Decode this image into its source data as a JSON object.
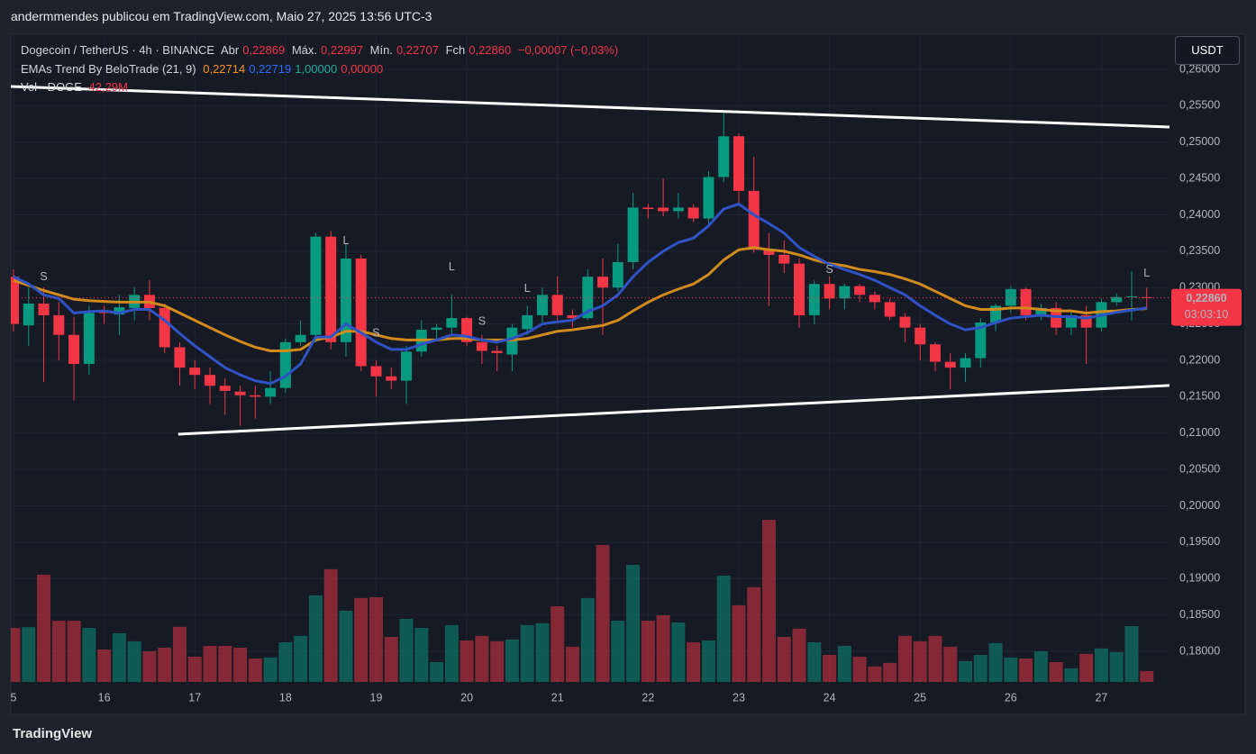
{
  "header": {
    "text": "andermmendes publicou em TradingView.com, Maio 27, 2025 13:56 UTC-3"
  },
  "legend": {
    "symbol": "Dogecoin / TetherUS · 4h · BINANCE",
    "open_key": "Abr",
    "open": "0,22869",
    "high_key": "Máx.",
    "high": "0,22997",
    "low_key": "Mín.",
    "low": "0,22707",
    "close_key": "Fch",
    "close": "0,22860",
    "change": "−0,00007 (−0,03%)",
    "ema_name": "EMAs Trend By BeloTrade (21, 9)",
    "ema_values": [
      "0,22714",
      "0,22719",
      "1,00000",
      "0,00000"
    ],
    "vol_name": "Vol · DOGE",
    "vol_value": "42,29M"
  },
  "currency_button": "USDT",
  "last_price_label": "0,22860",
  "countdown": "03:03:10",
  "footer": "TradingView",
  "chart_data": {
    "type": "candlestick",
    "up_color": "#089981",
    "down_color": "#f23645",
    "ylim": [
      0.17542,
      0.26483
    ],
    "yticks": [
      {
        "value": 0.26,
        "label": "0,26000"
      },
      {
        "value": 0.255,
        "label": "0,25500"
      },
      {
        "value": 0.25,
        "label": "0,25000"
      },
      {
        "value": 0.245,
        "label": "0,24500"
      },
      {
        "value": 0.24,
        "label": "0,24000"
      },
      {
        "value": 0.235,
        "label": "0,23500"
      },
      {
        "value": 0.23,
        "label": "0,23000"
      },
      {
        "value": 0.225,
        "label": "0,22500"
      },
      {
        "value": 0.22,
        "label": "0,22000"
      },
      {
        "value": 0.215,
        "label": "0,21500"
      },
      {
        "value": 0.21,
        "label": "0,21000"
      },
      {
        "value": 0.205,
        "label": "0,20500"
      },
      {
        "value": 0.2,
        "label": "0,20000"
      },
      {
        "value": 0.195,
        "label": "0,19500"
      },
      {
        "value": 0.19,
        "label": "0,19000"
      },
      {
        "value": 0.185,
        "label": "0,18500"
      },
      {
        "value": 0.18,
        "label": "0,18000"
      }
    ],
    "xticks": [
      {
        "value": 0,
        "label": "5"
      },
      {
        "value": 6,
        "label": "16"
      },
      {
        "value": 12,
        "label": "17"
      },
      {
        "value": 18,
        "label": "18"
      },
      {
        "value": 24,
        "label": "19"
      },
      {
        "value": 30,
        "label": "20"
      },
      {
        "value": 36,
        "label": "21"
      },
      {
        "value": 42,
        "label": "22"
      },
      {
        "value": 48,
        "label": "23"
      },
      {
        "value": 54,
        "label": "24"
      },
      {
        "value": 60,
        "label": "25"
      },
      {
        "value": 66,
        "label": "26"
      },
      {
        "value": 72,
        "label": "27"
      }
    ],
    "open": [
      0.2315,
      0.2248,
      0.2278,
      0.2262,
      0.2235,
      0.2195,
      0.2268,
      0.2263,
      0.2272,
      0.229,
      0.2272,
      0.2218,
      0.219,
      0.218,
      0.2165,
      0.2157,
      0.2152,
      0.215,
      0.2162,
      0.2225,
      0.2235,
      0.237,
      0.2225,
      0.234,
      0.2192,
      0.2178,
      0.2172,
      0.2212,
      0.2242,
      0.2245,
      0.2258,
      0.2225,
      0.2213,
      0.2208,
      0.2243,
      0.2262,
      0.229,
      0.2262,
      0.2258,
      0.2315,
      0.23,
      0.2335,
      0.241,
      0.241,
      0.2405,
      0.241,
      0.2395,
      0.2452,
      0.2508,
      0.2433,
      0.2352,
      0.2345,
      0.2333,
      0.2262,
      0.2305,
      0.2285,
      0.2302,
      0.229,
      0.228,
      0.226,
      0.2245,
      0.2222,
      0.2198,
      0.219,
      0.2203,
      0.2252,
      0.2275,
      0.2298,
      0.2262,
      0.2272,
      0.2245,
      0.2262,
      0.2245,
      0.228,
      0.2287,
      0.22869
    ],
    "high": [
      0.2325,
      0.23,
      0.23,
      0.228,
      0.226,
      0.2275,
      0.2275,
      0.229,
      0.23,
      0.231,
      0.2278,
      0.2225,
      0.22,
      0.219,
      0.2175,
      0.2165,
      0.2165,
      0.2185,
      0.223,
      0.2255,
      0.2375,
      0.2378,
      0.236,
      0.2345,
      0.22,
      0.219,
      0.222,
      0.2255,
      0.225,
      0.229,
      0.226,
      0.2235,
      0.222,
      0.225,
      0.2275,
      0.23,
      0.2315,
      0.227,
      0.2325,
      0.234,
      0.236,
      0.243,
      0.2415,
      0.245,
      0.243,
      0.2415,
      0.246,
      0.254,
      0.2512,
      0.248,
      0.2375,
      0.2365,
      0.234,
      0.231,
      0.2315,
      0.2305,
      0.2305,
      0.2295,
      0.2285,
      0.2265,
      0.225,
      0.2225,
      0.221,
      0.221,
      0.2258,
      0.2278,
      0.2302,
      0.23,
      0.2278,
      0.228,
      0.227,
      0.2275,
      0.2285,
      0.2292,
      0.2322,
      0.22997
    ],
    "low": [
      0.224,
      0.222,
      0.217,
      0.22,
      0.2145,
      0.218,
      0.225,
      0.2235,
      0.2255,
      0.2255,
      0.221,
      0.2165,
      0.216,
      0.214,
      0.2125,
      0.211,
      0.212,
      0.214,
      0.2155,
      0.222,
      0.2225,
      0.2215,
      0.2205,
      0.2185,
      0.215,
      0.216,
      0.214,
      0.2205,
      0.223,
      0.2235,
      0.222,
      0.2195,
      0.2185,
      0.2185,
      0.2235,
      0.225,
      0.2255,
      0.2245,
      0.2255,
      0.2235,
      0.2295,
      0.2325,
      0.2395,
      0.2398,
      0.2395,
      0.239,
      0.2385,
      0.2445,
      0.2415,
      0.2348,
      0.2275,
      0.232,
      0.2245,
      0.225,
      0.227,
      0.227,
      0.228,
      0.227,
      0.2255,
      0.2225,
      0.22,
      0.2185,
      0.216,
      0.217,
      0.219,
      0.224,
      0.2265,
      0.2255,
      0.2255,
      0.2235,
      0.2235,
      0.2195,
      0.224,
      0.2275,
      0.2255,
      0.22707
    ],
    "close": [
      0.225,
      0.2278,
      0.2262,
      0.2235,
      0.2195,
      0.2265,
      0.2265,
      0.2273,
      0.229,
      0.2272,
      0.2218,
      0.219,
      0.218,
      0.2165,
      0.2158,
      0.2152,
      0.215,
      0.2162,
      0.2225,
      0.2235,
      0.237,
      0.2225,
      0.234,
      0.2192,
      0.2178,
      0.2172,
      0.2212,
      0.2242,
      0.2245,
      0.2258,
      0.2225,
      0.2213,
      0.221,
      0.2245,
      0.2262,
      0.229,
      0.2262,
      0.2258,
      0.2315,
      0.23,
      0.2335,
      0.241,
      0.2408,
      0.2405,
      0.241,
      0.2395,
      0.2452,
      0.2508,
      0.2433,
      0.2352,
      0.2345,
      0.2333,
      0.2262,
      0.2305,
      0.2285,
      0.2302,
      0.229,
      0.228,
      0.226,
      0.2245,
      0.2222,
      0.2198,
      0.219,
      0.2203,
      0.2252,
      0.2275,
      0.2298,
      0.2262,
      0.2272,
      0.2245,
      0.2262,
      0.2245,
      0.228,
      0.2287,
      0.2288,
      0.2286
    ],
    "volume": [
      210,
      213,
      417,
      238,
      238,
      210,
      126,
      189,
      158,
      119,
      133,
      214,
      98,
      140,
      140,
      133,
      91,
      95,
      154,
      179,
      336,
      438,
      277,
      326,
      329,
      175,
      245,
      210,
      77,
      221,
      161,
      179,
      158,
      165,
      221,
      228,
      294,
      137,
      326,
      532,
      238,
      455,
      238,
      259,
      231,
      154,
      161,
      413,
      298,
      368,
      630,
      175,
      207,
      154,
      105,
      140,
      98,
      60,
      74,
      179,
      158,
      179,
      137,
      81,
      105,
      151,
      95,
      91,
      119,
      77,
      53,
      109,
      130,
      116,
      217,
      42.29
    ],
    "lines": [
      {
        "name": "EMA 21",
        "color": "#d18a1c",
        "values": [
          0.231,
          0.2303,
          0.2296,
          0.229,
          0.2284,
          0.2282,
          0.2281,
          0.228,
          0.228,
          0.228,
          0.2275,
          0.2265,
          0.2255,
          0.2245,
          0.2235,
          0.2226,
          0.2218,
          0.2213,
          0.2213,
          0.2215,
          0.2228,
          0.2232,
          0.224,
          0.224,
          0.2235,
          0.223,
          0.2228,
          0.2228,
          0.2228,
          0.223,
          0.223,
          0.2228,
          0.2228,
          0.2228,
          0.223,
          0.2235,
          0.224,
          0.2242,
          0.2245,
          0.2248,
          0.2255,
          0.2268,
          0.228,
          0.229,
          0.2298,
          0.2305,
          0.2318,
          0.2338,
          0.2352,
          0.2355,
          0.2352,
          0.235,
          0.2345,
          0.2338,
          0.2333,
          0.233,
          0.2325,
          0.2322,
          0.2318,
          0.2312,
          0.2305,
          0.2295,
          0.2285,
          0.2275,
          0.227,
          0.227,
          0.2272,
          0.2272,
          0.227,
          0.2268,
          0.2268,
          0.2265,
          0.2267,
          0.2268,
          0.227,
          0.2271
        ]
      },
      {
        "name": "EMA 9",
        "color": "#2f52c4",
        "values": [
          0.2315,
          0.2305,
          0.229,
          0.2285,
          0.2265,
          0.2267,
          0.2268,
          0.2265,
          0.227,
          0.227,
          0.2255,
          0.2237,
          0.222,
          0.2205,
          0.219,
          0.218,
          0.2172,
          0.2168,
          0.2178,
          0.2195,
          0.2232,
          0.2232,
          0.225,
          0.2238,
          0.2225,
          0.2215,
          0.2215,
          0.2222,
          0.2228,
          0.2235,
          0.2233,
          0.2228,
          0.2225,
          0.223,
          0.2238,
          0.225,
          0.2253,
          0.2255,
          0.2267,
          0.2275,
          0.229,
          0.2315,
          0.2335,
          0.235,
          0.2362,
          0.2368,
          0.2385,
          0.2408,
          0.2415,
          0.24,
          0.2388,
          0.2375,
          0.2355,
          0.2343,
          0.2332,
          0.2325,
          0.2318,
          0.231,
          0.23,
          0.229,
          0.2275,
          0.2262,
          0.225,
          0.2242,
          0.2245,
          0.2252,
          0.2258,
          0.226,
          0.2262,
          0.226,
          0.226,
          0.2258,
          0.2262,
          0.2266,
          0.2269,
          0.2272
        ]
      }
    ],
    "signals": [
      {
        "index": 2,
        "price": 0.2314,
        "label": "S"
      },
      {
        "index": 24,
        "price": 0.2237,
        "label": "S"
      },
      {
        "index": 31,
        "price": 0.2253,
        "label": "S"
      },
      {
        "index": 54,
        "price": 0.2324,
        "label": "S"
      },
      {
        "index": 22,
        "price": 0.2364,
        "label": "L"
      },
      {
        "index": 29,
        "price": 0.2328,
        "label": "L"
      },
      {
        "index": 34,
        "price": 0.2298,
        "label": "L"
      },
      {
        "index": 75,
        "price": 0.2319,
        "label": "L"
      }
    ],
    "trendlines": [
      {
        "from": [
          -0.18,
          0.25765
        ],
        "to": [
          76.5,
          0.25208
        ]
      },
      {
        "from": [
          10.9,
          0.20985
        ],
        "to": [
          76.5,
          0.21655
        ]
      }
    ],
    "last_price": 0.2286
  }
}
